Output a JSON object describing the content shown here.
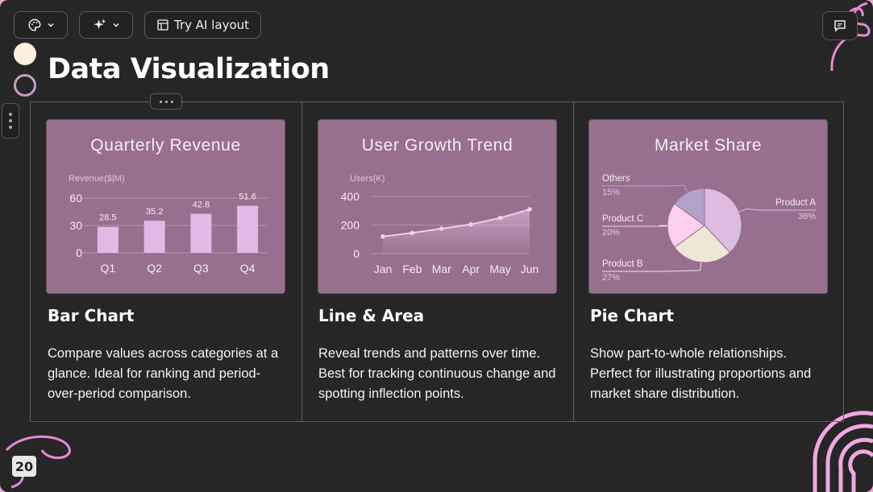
{
  "toolbar": {
    "theme_icon": "palette-icon",
    "ai_icon": "sparkle-icon",
    "try_ai_label": "Try AI layout",
    "comment_icon": "comment-icon"
  },
  "slide": {
    "title": "Data Visualization",
    "page_number": "20",
    "accent_color": "#97708f",
    "bar_color": "#e2b9e4"
  },
  "columns": [
    {
      "heading": "Bar Chart",
      "description": "Compare values across categories at a glance. Ideal for ranking and period-over-period comparison.",
      "chart_title": "Quarterly Revenue"
    },
    {
      "heading": "Line & Area",
      "description": "Reveal trends and patterns over time. Best for tracking continuous change and spotting inflection points.",
      "chart_title": "User Growth Trend"
    },
    {
      "heading": "Pie Chart",
      "description": "Show part-to-whole relationships. Perfect for illustrating proportions and market share distribution.",
      "chart_title": "Market Share"
    }
  ],
  "chart_data": [
    {
      "type": "bar",
      "title": "Quarterly Revenue",
      "ylabel": "Revenue($|M)",
      "categories": [
        "Q1",
        "Q2",
        "Q3",
        "Q4"
      ],
      "values": [
        28.5,
        35.2,
        42.8,
        51.6
      ],
      "yticks": [
        0,
        30,
        60
      ],
      "ylim": [
        0,
        60
      ],
      "grid": true
    },
    {
      "type": "area",
      "title": "User Growth Trend",
      "ylabel": "Users(K)",
      "categories": [
        "Jan",
        "Feb",
        "Mar",
        "Apr",
        "May",
        "Jun"
      ],
      "values": [
        120,
        145,
        175,
        205,
        250,
        310
      ],
      "yticks": [
        0,
        200,
        400
      ],
      "ylim": [
        0,
        400
      ],
      "grid": true
    },
    {
      "type": "pie",
      "title": "Market Share",
      "slices": [
        {
          "label": "Product A",
          "value": 38,
          "pct": "38%",
          "color": "#dcbde0"
        },
        {
          "label": "Product B",
          "value": 27,
          "pct": "27%",
          "color": "#efe6d6"
        },
        {
          "label": "Product C",
          "value": 20,
          "pct": "20%",
          "color": "#fdd0ee"
        },
        {
          "label": "Others",
          "value": 15,
          "pct": "15%",
          "color": "#b3a3cb"
        }
      ]
    }
  ]
}
